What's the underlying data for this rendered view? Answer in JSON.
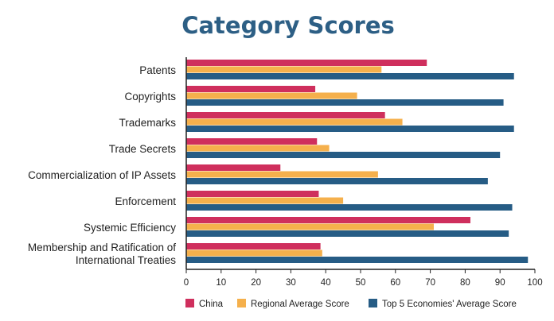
{
  "chart_data": {
    "type": "bar",
    "orientation": "horizontal",
    "title": "Category Scores",
    "categories": [
      [
        "Patents"
      ],
      [
        "Copyrights"
      ],
      [
        "Trademarks"
      ],
      [
        "Trade Secrets"
      ],
      [
        "Commercialization of IP Assets"
      ],
      [
        "Enforcement"
      ],
      [
        "Systemic Efficiency"
      ],
      [
        "Membership and Ratification of",
        "International Treaties"
      ]
    ],
    "series": [
      {
        "name": "China",
        "color": "#cf2f5d",
        "values": [
          69,
          37,
          57,
          37.5,
          27,
          38,
          81.5,
          38.5
        ]
      },
      {
        "name": "Regional Average Score",
        "color": "#f5b04c",
        "values": [
          56,
          49,
          62,
          41,
          55,
          45,
          71,
          39
        ]
      },
      {
        "name": "Top 5 Economies' Average Score",
        "color": "#265c85",
        "values": [
          94,
          91,
          94,
          90,
          86.5,
          93.5,
          92.5,
          98
        ]
      }
    ],
    "xlim": [
      0,
      100
    ],
    "xticks": [
      "0",
      "10",
      "20",
      "30",
      "40",
      "50",
      "60",
      "70",
      "80",
      "90",
      "100"
    ],
    "grid": false,
    "legend_position": "bottom"
  }
}
